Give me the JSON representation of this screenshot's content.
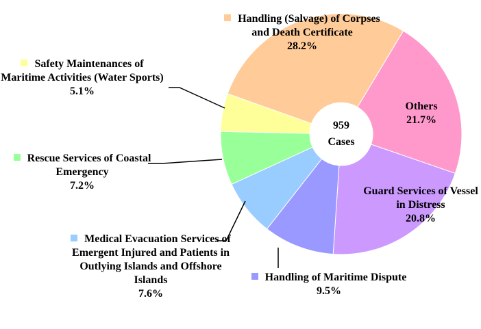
{
  "chart_data": {
    "type": "donut",
    "categories": [
      "Others",
      "Guard Services of Vessel in Distress",
      "Handling of Maritime Dispute",
      "Medical Evacuation Services of Emergent Injured and Patients in Outlying Islands and Offshore Islands",
      "Rescue Services of Coastal Emergency",
      "Safety Maintenances of Maritime Activities (Water Sports)",
      "Handling (Salvage) of Corpses and Death Certificate"
    ],
    "values": [
      21.7,
      20.8,
      9.5,
      7.6,
      7.2,
      5.1,
      28.2
    ],
    "value_labels": [
      "21.7%",
      "20.8%",
      "9.5%",
      "7.6%",
      "7.2%",
      "5.1%",
      "28.2%"
    ],
    "colors": [
      "#ff99cc",
      "#cc99ff",
      "#9999ff",
      "#99ccff",
      "#99ff99",
      "#ffff99",
      "#ffcc99"
    ],
    "center_label": "959 Cases"
  }
}
